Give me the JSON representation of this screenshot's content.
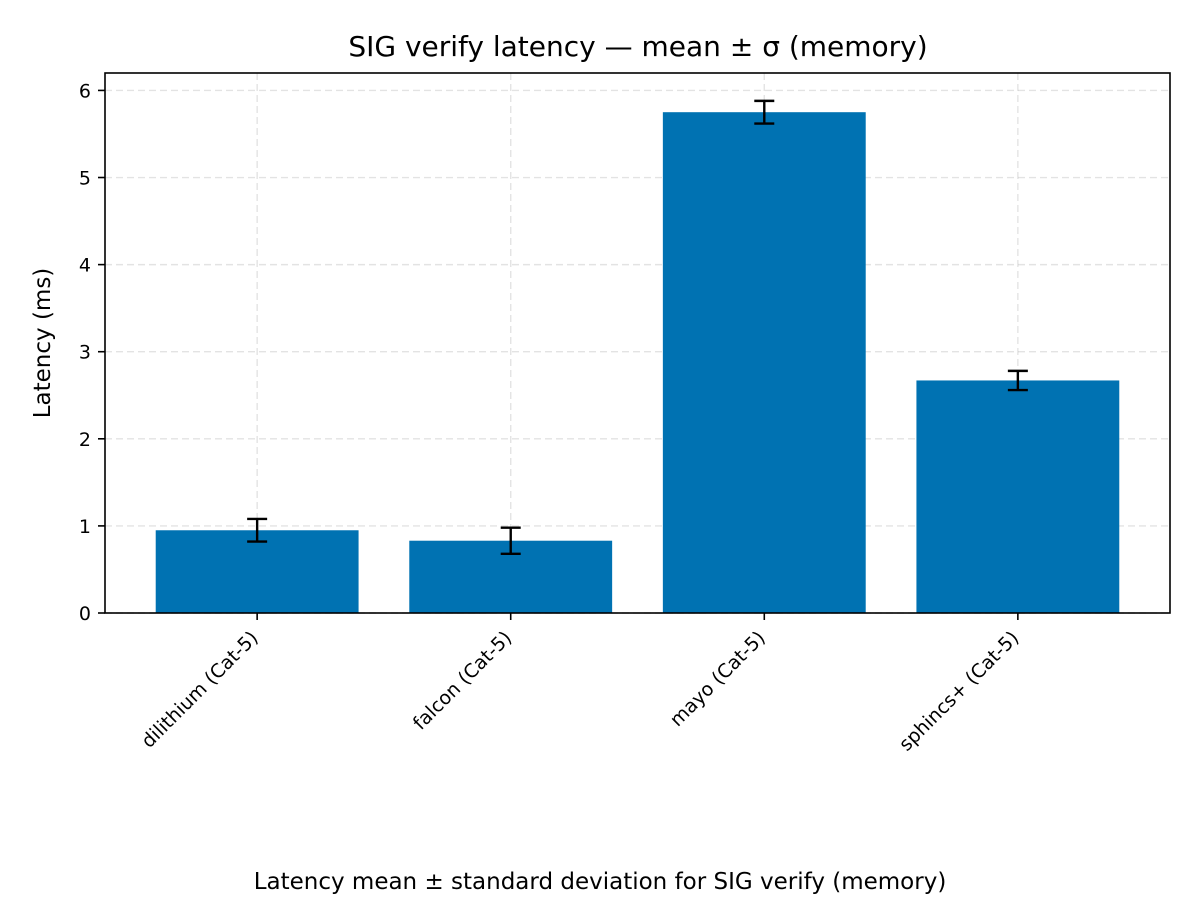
{
  "chart_data": {
    "type": "bar",
    "title": "SIG verify latency — mean ± σ (memory)",
    "xlabel": "",
    "ylabel": "Latency (ms)",
    "caption": "Latency mean ± standard deviation for SIG verify (memory)",
    "categories": [
      "dilithium (Cat-5)",
      "falcon (Cat-5)",
      "mayo (Cat-5)",
      "sphincs+ (Cat-5)"
    ],
    "values": [
      0.95,
      0.83,
      5.75,
      2.67
    ],
    "errors": [
      0.13,
      0.15,
      0.13,
      0.11
    ],
    "ylim": [
      0,
      6.2
    ],
    "yticks": [
      0,
      1,
      2,
      3,
      4,
      5,
      6
    ],
    "grid": true,
    "bar_color": "#0072b2"
  }
}
